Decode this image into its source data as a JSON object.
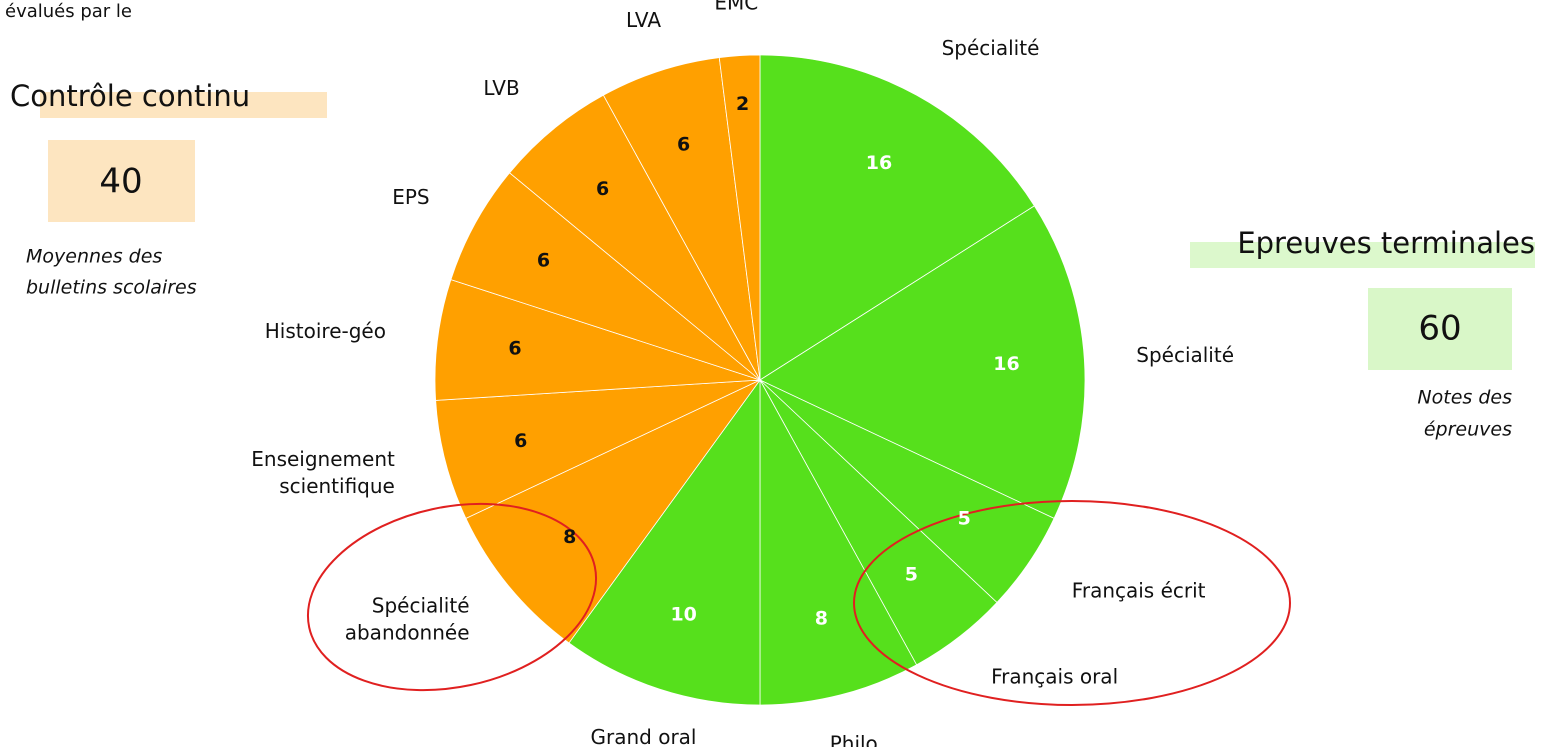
{
  "header": {
    "text": "évalués par le"
  },
  "chart_data": {
    "type": "pie",
    "categories": [
      [
        "Spécialité"
      ],
      [
        "Spécialité"
      ],
      [
        "Français écrit"
      ],
      [
        "Français oral"
      ],
      [
        "Philo"
      ],
      [
        "Grand oral"
      ],
      [
        "Spécialité",
        "abandonnée"
      ],
      [
        "Enseignement",
        "scientifique"
      ],
      [
        "Histoire-géo"
      ],
      [
        "EPS"
      ],
      [
        "LVB"
      ],
      [
        "LVA"
      ],
      [
        "EMC"
      ]
    ],
    "values": [
      16,
      16,
      5,
      5,
      8,
      10,
      8,
      6,
      6,
      6,
      6,
      6,
      2
    ],
    "colors": [
      "#56e01c",
      "#56e01c",
      "#56e01c",
      "#56e01c",
      "#56e01c",
      "#56e01c",
      "#ffa000",
      "#ffa000",
      "#ffa000",
      "#ffa000",
      "#ffa000",
      "#ffa000",
      "#ffa000"
    ]
  },
  "groups": [
    {
      "title": "Contrôle continu",
      "total": 40,
      "note": [
        "Moyennes des",
        "bulletins scolaires"
      ]
    },
    {
      "title": "Epreuves terminales",
      "total": 60,
      "note": [
        "Notes des",
        "épreuves"
      ]
    }
  ]
}
